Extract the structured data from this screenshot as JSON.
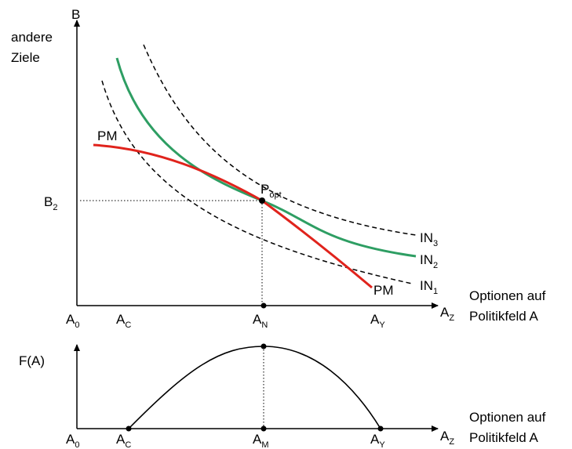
{
  "colors": {
    "axis": "#000000",
    "pm_curve": "#e0231c",
    "green_curve": "#2e9e63",
    "indifference": "#000000"
  },
  "top_axes": {
    "y_axis_letter": "B",
    "y_axis_caption_1": "andere",
    "y_axis_caption_2": "Ziele",
    "x_axis_end": "A",
    "x_axis_end_sub": "Z",
    "x_caption_1": "Optionen auf",
    "x_caption_2": "Politikfeld A",
    "b2": "B",
    "b2_sub": "2",
    "a0": "A",
    "a0_sub": "0",
    "ac": "A",
    "ac_sub": "C",
    "an": "A",
    "an_sub": "N",
    "ay": "A",
    "ay_sub": "Y"
  },
  "curves": {
    "pm_top": "PM",
    "pm_bottom": "PM",
    "in3": "IN",
    "in3_sub": "3",
    "in2": "IN",
    "in2_sub": "2",
    "in1": "IN",
    "in1_sub": "1",
    "popt": "P",
    "popt_sub": "opt"
  },
  "bottom_axes": {
    "y_label": "F(A)",
    "x_axis_end": "A",
    "x_axis_end_sub": "Z",
    "x_caption_1": "Optionen auf",
    "x_caption_2": "Politikfeld A",
    "a0": "A",
    "a0_sub": "0",
    "ac": "A",
    "ac_sub": "C",
    "am": "A",
    "am_sub": "M",
    "ay": "A",
    "ay_sub": "Y"
  }
}
